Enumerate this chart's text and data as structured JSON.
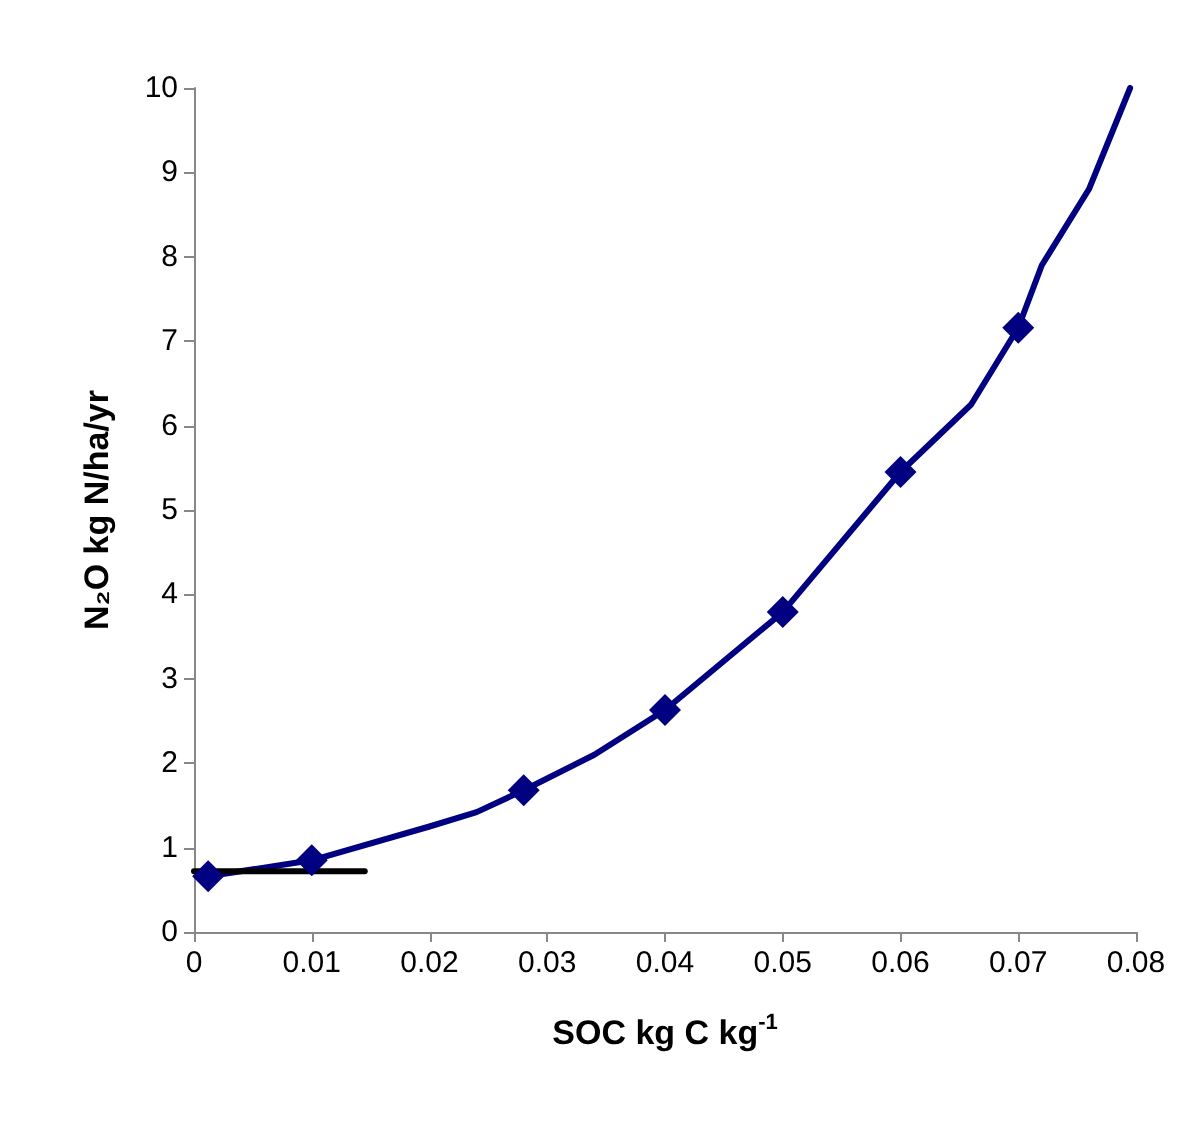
{
  "chart_data": {
    "type": "scatter",
    "xlabel": "SOC kg C kg$^{-1}$",
    "ylabel": "N₂O kg N/ha/yr",
    "xlim": [
      0,
      0.08
    ],
    "xticks": [
      0,
      0.01,
      0.02,
      0.03,
      0.04,
      0.05,
      0.06,
      0.07,
      0.08
    ],
    "ylim": [
      0,
      10
    ],
    "yticks": [
      0,
      1,
      2,
      3,
      4,
      5,
      6,
      7,
      8,
      9,
      10
    ],
    "grid": false,
    "series": [
      {
        "type": "line",
        "color": "#000080",
        "marker": "none",
        "line_style": "solid",
        "x": [
          0.0012,
          0.01,
          0.02,
          0.024,
          0.028,
          0.034,
          0.04,
          0.05,
          0.06,
          0.066,
          0.07,
          0.072,
          0.076,
          0.0795
        ],
        "values": [
          0.66,
          0.85,
          1.25,
          1.42,
          1.68,
          2.1,
          2.63,
          3.79,
          5.45,
          6.25,
          7.16,
          7.9,
          8.8,
          10
        ]
      },
      {
        "type": "line",
        "color": "#000000",
        "marker": "none",
        "line_style": "solid",
        "x": [
          0,
          0.0145
        ],
        "values": [
          0.72,
          0.72
        ]
      },
      {
        "color": "#000080",
        "marker": "diamond",
        "x": [
          0.0012,
          0.01,
          0.028,
          0.04,
          0.05,
          0.06,
          0.07
        ],
        "values": [
          0.66,
          0.85,
          1.68,
          2.63,
          3.79,
          5.45,
          7.16
        ]
      }
    ]
  }
}
